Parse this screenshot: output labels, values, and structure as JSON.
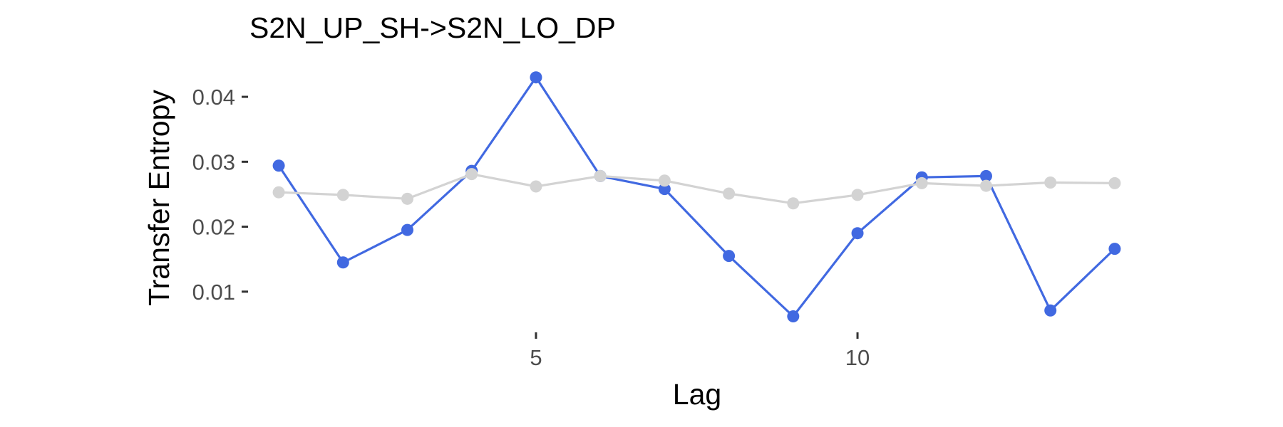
{
  "chart_data": {
    "type": "line",
    "title": "S2N_UP_SH->S2N_LO_DP",
    "xlabel": "Lag",
    "ylabel": "Transfer Entropy",
    "xlim": [
      0.6,
      14.4
    ],
    "ylim": [
      0.0045,
      0.0445
    ],
    "xticks": [
      5,
      10
    ],
    "yticks": [
      0.01,
      0.02,
      0.03,
      0.04
    ],
    "ytick_labels": [
      "0.01",
      "0.02",
      "0.03",
      "0.04"
    ],
    "xtick_labels": [
      "5",
      "10"
    ],
    "grid": false,
    "x": [
      1,
      2,
      3,
      4,
      5,
      6,
      7,
      8,
      9,
      10,
      11,
      12,
      13,
      14
    ],
    "series": [
      {
        "color": "#4169e1",
        "values": [
          0.0294,
          0.0145,
          0.0195,
          0.0286,
          0.043,
          0.0278,
          0.0258,
          0.0155,
          0.0062,
          0.019,
          0.0276,
          0.0278,
          0.0071,
          0.0166
        ]
      },
      {
        "color": "#d3d3d3",
        "values": [
          0.0253,
          0.0249,
          0.0243,
          0.0281,
          0.0262,
          0.0278,
          0.0271,
          0.0251,
          0.0236,
          0.0249,
          0.0267,
          0.0263,
          0.0268,
          0.0267
        ]
      }
    ]
  }
}
